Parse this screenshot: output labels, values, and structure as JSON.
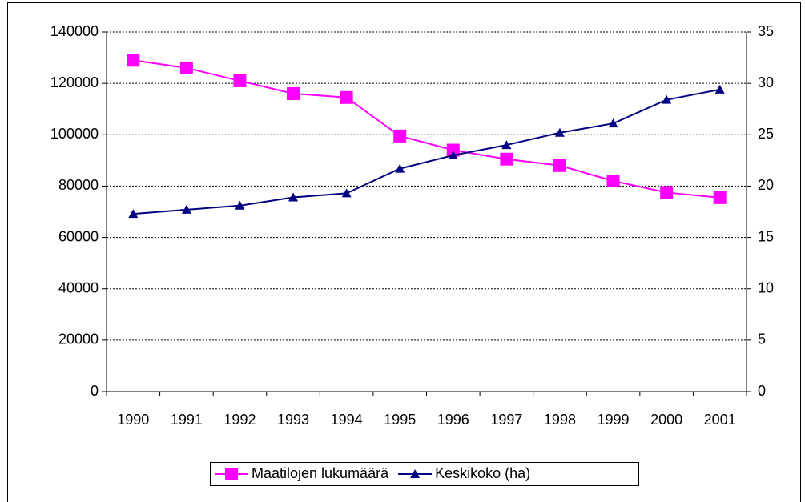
{
  "chart_data": {
    "type": "line",
    "categories": [
      "1990",
      "1991",
      "1992",
      "1993",
      "1994",
      "1995",
      "1996",
      "1997",
      "1998",
      "1999",
      "2000",
      "2001"
    ],
    "series": [
      {
        "name": "Maatilojen lukumäärä",
        "color": "#ff00ff",
        "marker": "square",
        "values": [
          129000,
          126000,
          121000,
          116000,
          114500,
          99500,
          94000,
          90500,
          88000,
          82000,
          77500,
          75500
        ]
      },
      {
        "name": "Keskikoko (ha)",
        "color": "#000080",
        "marker": "triangle",
        "axis": "y2",
        "values": [
          17.3,
          17.7,
          18.1,
          18.9,
          19.3,
          21.7,
          23.0,
          24.0,
          25.2,
          26.1,
          28.4,
          29.4
        ]
      }
    ],
    "ylim": [
      0,
      140000
    ],
    "yticks": [
      0,
      20000,
      40000,
      60000,
      80000,
      100000,
      120000,
      140000
    ],
    "y2lim": [
      0,
      35
    ],
    "y2ticks": [
      0,
      5,
      10,
      15,
      20,
      25,
      30,
      35
    ],
    "grid": true,
    "legend": "bottom"
  }
}
